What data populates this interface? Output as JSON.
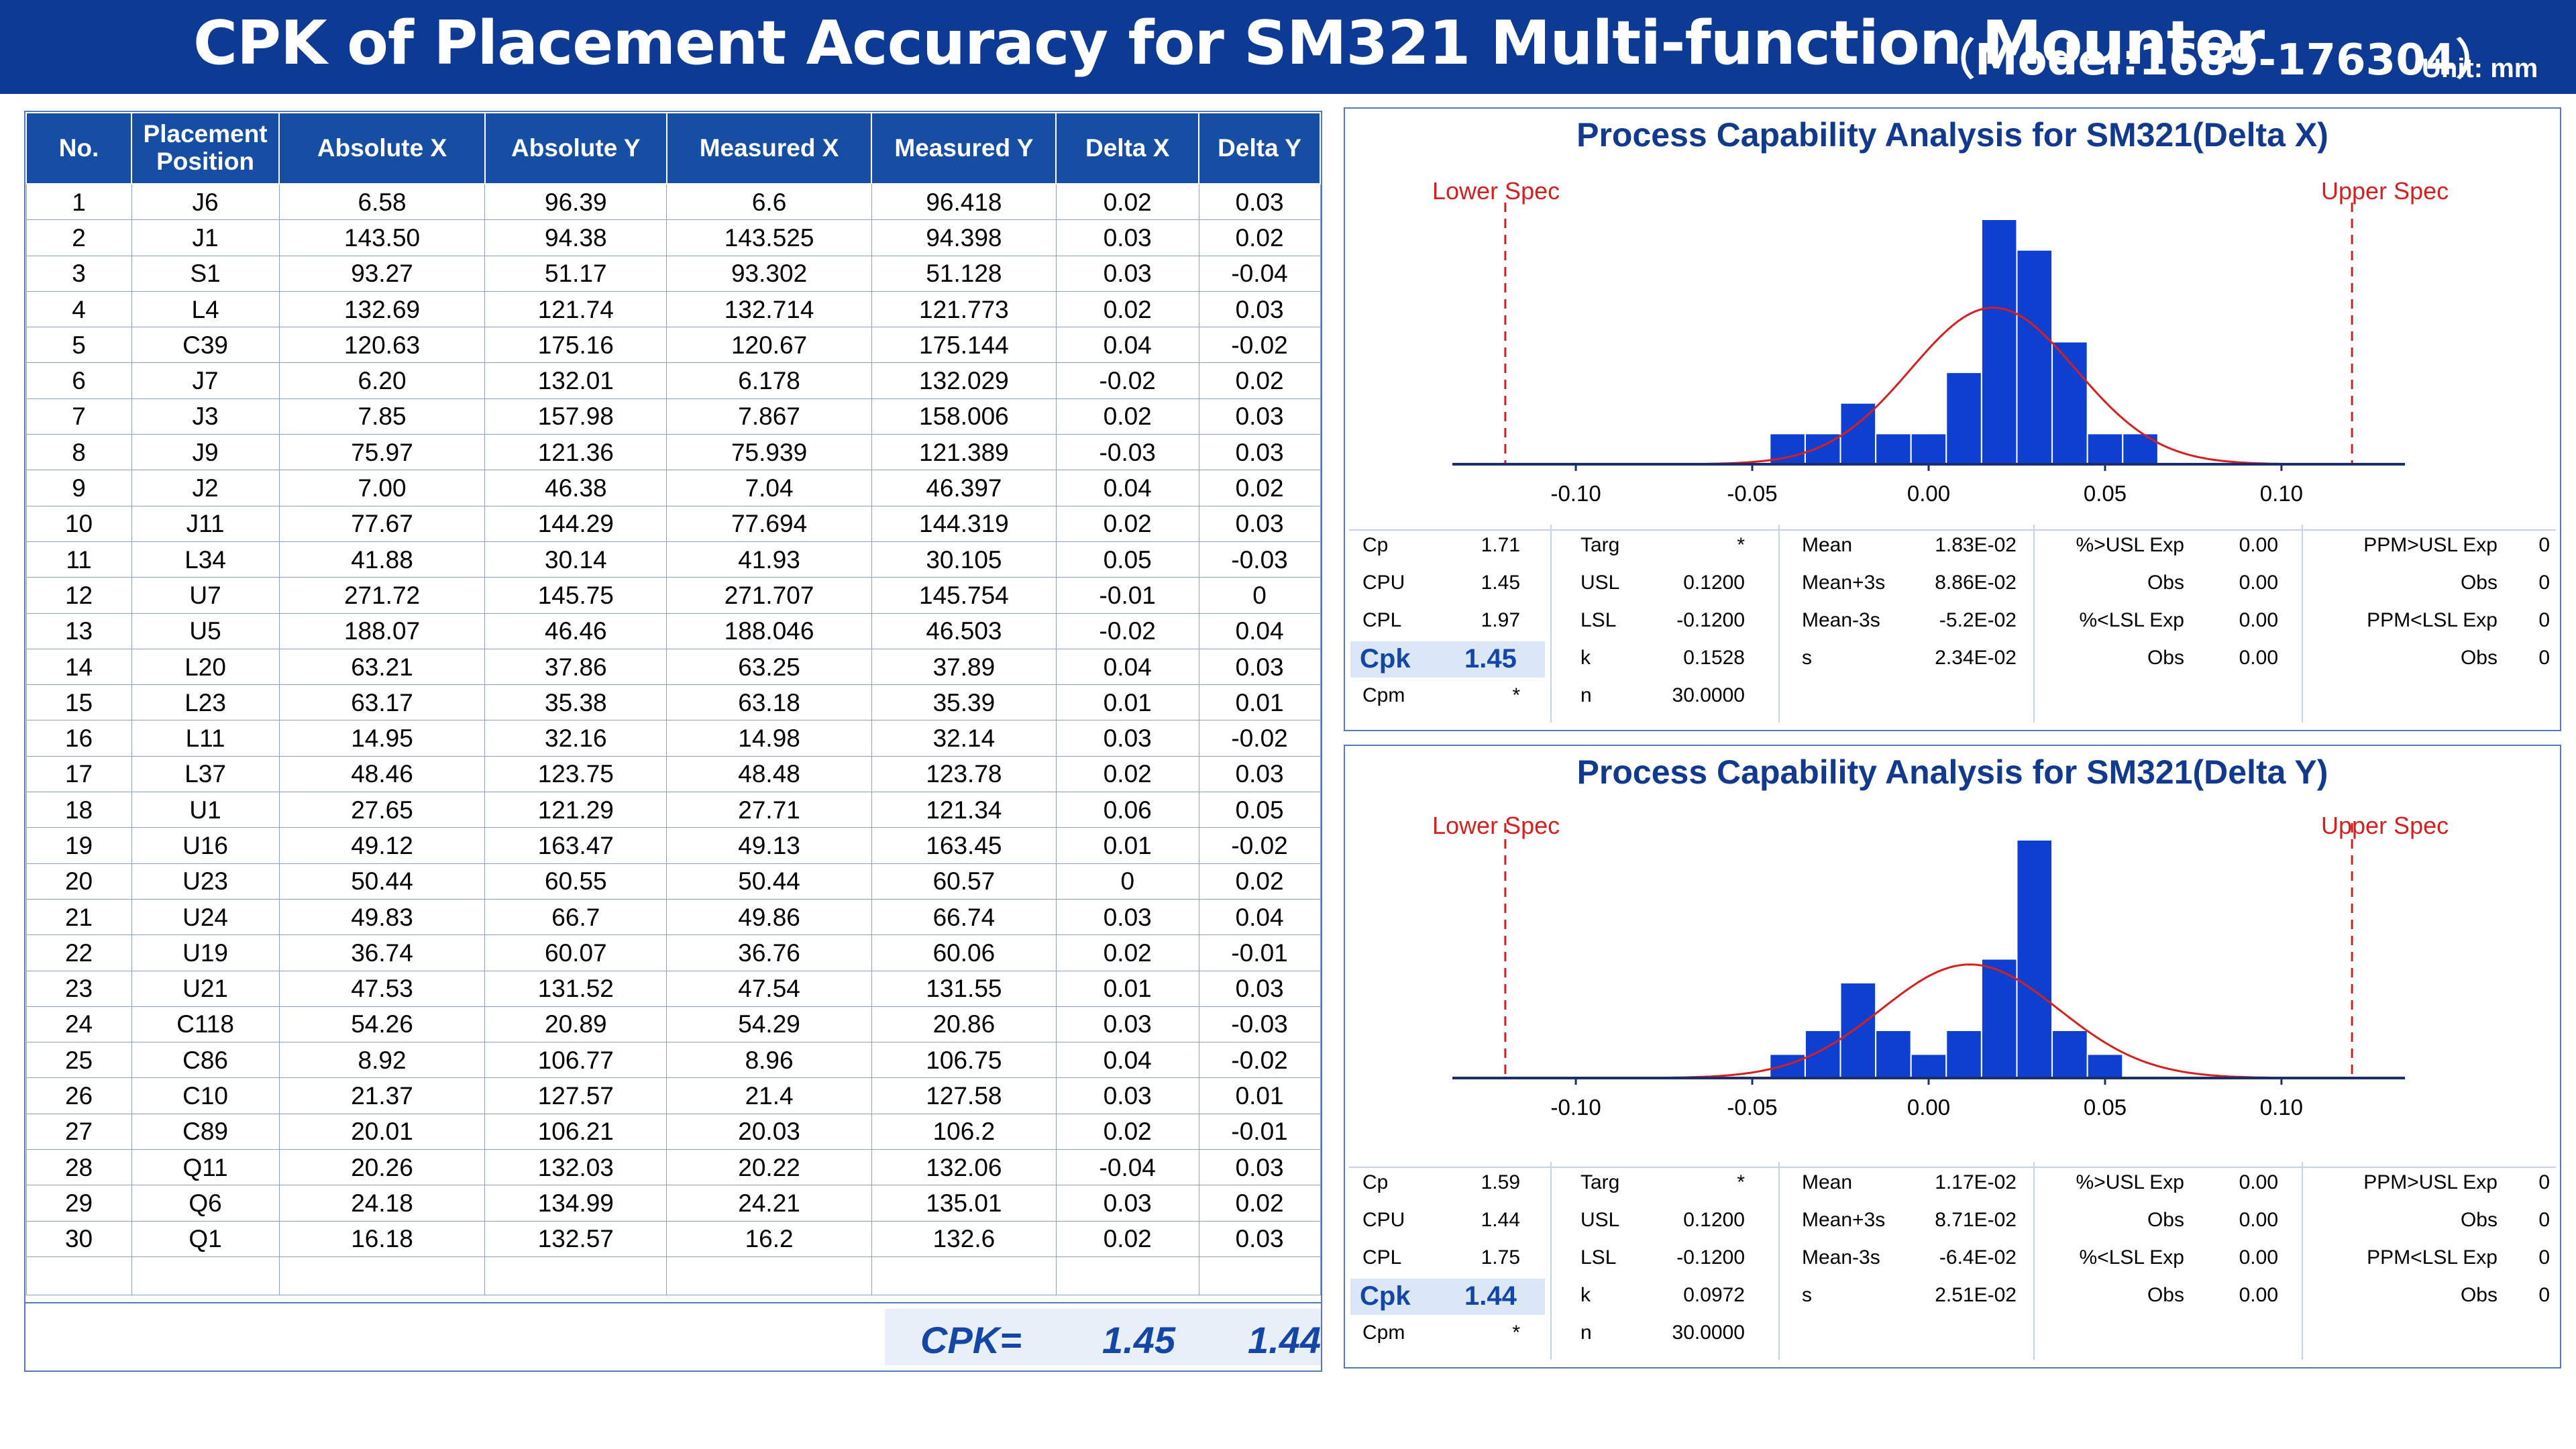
{
  "header": {
    "title": "CPK of Placement Accuracy for SM321 Multi-function Mounter",
    "model": "（Model:1689-176304）",
    "unit": "Unit: mm"
  },
  "table": {
    "columns": [
      "No.",
      "Placement Position",
      "Absolute X",
      "Absolute Y",
      "Measured X",
      "Measured Y",
      "Delta X",
      "Delta Y"
    ],
    "rows": [
      [
        "1",
        "J6",
        "6.58",
        "96.39",
        "6.6",
        "96.418",
        "0.02",
        "0.03"
      ],
      [
        "2",
        "J1",
        "143.50",
        "94.38",
        "143.525",
        "94.398",
        "0.03",
        "0.02"
      ],
      [
        "3",
        "S1",
        "93.27",
        "51.17",
        "93.302",
        "51.128",
        "0.03",
        "-0.04"
      ],
      [
        "4",
        "L4",
        "132.69",
        "121.74",
        "132.714",
        "121.773",
        "0.02",
        "0.03"
      ],
      [
        "5",
        "C39",
        "120.63",
        "175.16",
        "120.67",
        "175.144",
        "0.04",
        "-0.02"
      ],
      [
        "6",
        "J7",
        "6.20",
        "132.01",
        "6.178",
        "132.029",
        "-0.02",
        "0.02"
      ],
      [
        "7",
        "J3",
        "7.85",
        "157.98",
        "7.867",
        "158.006",
        "0.02",
        "0.03"
      ],
      [
        "8",
        "J9",
        "75.97",
        "121.36",
        "75.939",
        "121.389",
        "-0.03",
        "0.03"
      ],
      [
        "9",
        "J2",
        "7.00",
        "46.38",
        "7.04",
        "46.397",
        "0.04",
        "0.02"
      ],
      [
        "10",
        "J11",
        "77.67",
        "144.29",
        "77.694",
        "144.319",
        "0.02",
        "0.03"
      ],
      [
        "11",
        "L34",
        "41.88",
        "30.14",
        "41.93",
        "30.105",
        "0.05",
        "-0.03"
      ],
      [
        "12",
        "U7",
        "271.72",
        "145.75",
        "271.707",
        "145.754",
        "-0.01",
        "0"
      ],
      [
        "13",
        "U5",
        "188.07",
        "46.46",
        "188.046",
        "46.503",
        "-0.02",
        "0.04"
      ],
      [
        "14",
        "L20",
        "63.21",
        "37.86",
        "63.25",
        "37.89",
        "0.04",
        "0.03"
      ],
      [
        "15",
        "L23",
        "63.17",
        "35.38",
        "63.18",
        "35.39",
        "0.01",
        "0.01"
      ],
      [
        "16",
        "L11",
        "14.95",
        "32.16",
        "14.98",
        "32.14",
        "0.03",
        "-0.02"
      ],
      [
        "17",
        "L37",
        "48.46",
        "123.75",
        "48.48",
        "123.78",
        "0.02",
        "0.03"
      ],
      [
        "18",
        "U1",
        "27.65",
        "121.29",
        "27.71",
        "121.34",
        "0.06",
        "0.05"
      ],
      [
        "19",
        "U16",
        "49.12",
        "163.47",
        "49.13",
        "163.45",
        "0.01",
        "-0.02"
      ],
      [
        "20",
        "U23",
        "50.44",
        "60.55",
        "50.44",
        "60.57",
        "0",
        "0.02"
      ],
      [
        "21",
        "U24",
        "49.83",
        "66.7",
        "49.86",
        "66.74",
        "0.03",
        "0.04"
      ],
      [
        "22",
        "U19",
        "36.74",
        "60.07",
        "36.76",
        "60.06",
        "0.02",
        "-0.01"
      ],
      [
        "23",
        "U21",
        "47.53",
        "131.52",
        "47.54",
        "131.55",
        "0.01",
        "0.03"
      ],
      [
        "24",
        "C118",
        "54.26",
        "20.89",
        "54.29",
        "20.86",
        "0.03",
        "-0.03"
      ],
      [
        "25",
        "C86",
        "8.92",
        "106.77",
        "8.96",
        "106.75",
        "0.04",
        "-0.02"
      ],
      [
        "26",
        "C10",
        "21.37",
        "127.57",
        "21.4",
        "127.58",
        "0.03",
        "0.01"
      ],
      [
        "27",
        "C89",
        "20.01",
        "106.21",
        "20.03",
        "106.2",
        "0.02",
        "-0.01"
      ],
      [
        "28",
        "Q11",
        "20.26",
        "132.03",
        "20.22",
        "132.06",
        "-0.04",
        "0.03"
      ],
      [
        "29",
        "Q6",
        "24.18",
        "134.99",
        "24.21",
        "135.01",
        "0.03",
        "0.02"
      ],
      [
        "30",
        "Q1",
        "16.18",
        "132.57",
        "16.2",
        "132.6",
        "0.02",
        "0.03"
      ]
    ],
    "cpk_label": "CPK=",
    "cpk_x": "1.45",
    "cpk_y": "1.44"
  },
  "colors": {
    "header_bg": "#0d3a94",
    "table_header": "#164ea3",
    "bar": "#0f3fd0",
    "curve": "#d42020",
    "spec": "#d42020",
    "accent": "#1446a6"
  },
  "chart_data": [
    {
      "type": "bar",
      "title": "Process Capability Analysis for SM321(Delta X)",
      "lower_spec_label": "Lower Spec",
      "upper_spec_label": "Upper Spec",
      "lsl": -0.12,
      "usl": 0.12,
      "xlim": [
        -0.135,
        0.135
      ],
      "ylim": [
        0,
        8
      ],
      "x_ticks": [
        -0.1,
        -0.05,
        0.0,
        0.05,
        0.1
      ],
      "x_tick_labels": [
        "-0.10",
        "-0.05",
        "0.00",
        "0.05",
        "0.10"
      ],
      "bin_width": 0.01,
      "bin_centers": [
        -0.04,
        -0.03,
        -0.02,
        -0.01,
        0.0,
        0.01,
        0.02,
        0.03,
        0.04,
        0.05,
        0.06
      ],
      "counts": [
        1,
        1,
        2,
        1,
        1,
        3,
        8,
        7,
        4,
        1,
        1
      ],
      "normal_curve": {
        "mean": 0.0183,
        "sd": 0.0234,
        "n": 30
      },
      "stats": {
        "col1": [
          [
            "Cp",
            "1.71"
          ],
          [
            "CPU",
            "1.45"
          ],
          [
            "CPL",
            "1.97"
          ],
          [
            "Cpk",
            "1.45"
          ],
          [
            "Cpm",
            "*"
          ]
        ],
        "col2": [
          [
            "Targ",
            "*"
          ],
          [
            "USL",
            "0.1200"
          ],
          [
            "LSL",
            "-0.1200"
          ],
          [
            "k",
            "0.1528"
          ],
          [
            "n",
            "30.0000"
          ]
        ],
        "col3": [
          [
            "Mean",
            "1.83E-02"
          ],
          [
            "Mean+3s",
            "8.86E-02"
          ],
          [
            "Mean-3s",
            "-5.2E-02"
          ],
          [
            "s",
            "2.34E-02"
          ]
        ],
        "col4": [
          [
            "%>USL Exp",
            "0.00"
          ],
          [
            "Obs",
            "0.00"
          ],
          [
            "%<LSL Exp",
            "0.00"
          ],
          [
            "Obs",
            "0.00"
          ]
        ],
        "col5": [
          [
            "PPM>USL Exp",
            "0"
          ],
          [
            "Obs",
            "0"
          ],
          [
            "PPM<LSL Exp",
            "0"
          ],
          [
            "Obs",
            "0"
          ]
        ]
      }
    },
    {
      "type": "bar",
      "title": "Process Capability Analysis for SM321(Delta Y)",
      "lower_spec_label": "Lower Spec",
      "upper_spec_label": "Upper Spec",
      "lsl": -0.12,
      "usl": 0.12,
      "xlim": [
        -0.135,
        0.135
      ],
      "ylim": [
        0,
        10
      ],
      "x_ticks": [
        -0.1,
        -0.05,
        0.0,
        0.05,
        0.1
      ],
      "x_tick_labels": [
        "-0.10",
        "-0.05",
        "0.00",
        "0.05",
        "0.10"
      ],
      "bin_width": 0.01,
      "bin_centers": [
        -0.04,
        -0.03,
        -0.02,
        -0.01,
        0.0,
        0.01,
        0.02,
        0.03,
        0.04,
        0.05
      ],
      "counts": [
        1,
        2,
        4,
        2,
        1,
        2,
        5,
        10,
        2,
        1
      ],
      "normal_curve": {
        "mean": 0.0117,
        "sd": 0.0251,
        "n": 30
      },
      "stats": {
        "col1": [
          [
            "Cp",
            "1.59"
          ],
          [
            "CPU",
            "1.44"
          ],
          [
            "CPL",
            "1.75"
          ],
          [
            "Cpk",
            "1.44"
          ],
          [
            "Cpm",
            "*"
          ]
        ],
        "col2": [
          [
            "Targ",
            "*"
          ],
          [
            "USL",
            "0.1200"
          ],
          [
            "LSL",
            "-0.1200"
          ],
          [
            "k",
            "0.0972"
          ],
          [
            "n",
            "30.0000"
          ]
        ],
        "col3": [
          [
            "Mean",
            "1.17E-02"
          ],
          [
            "Mean+3s",
            "8.71E-02"
          ],
          [
            "Mean-3s",
            "-6.4E-02"
          ],
          [
            "s",
            "2.51E-02"
          ]
        ],
        "col4": [
          [
            "%>USL Exp",
            "0.00"
          ],
          [
            "Obs",
            "0.00"
          ],
          [
            "%<LSL Exp",
            "0.00"
          ],
          [
            "Obs",
            "0.00"
          ]
        ],
        "col5": [
          [
            "PPM>USL Exp",
            "0"
          ],
          [
            "Obs",
            "0"
          ],
          [
            "PPM<LSL Exp",
            "0"
          ],
          [
            "Obs",
            "0"
          ]
        ]
      }
    }
  ]
}
